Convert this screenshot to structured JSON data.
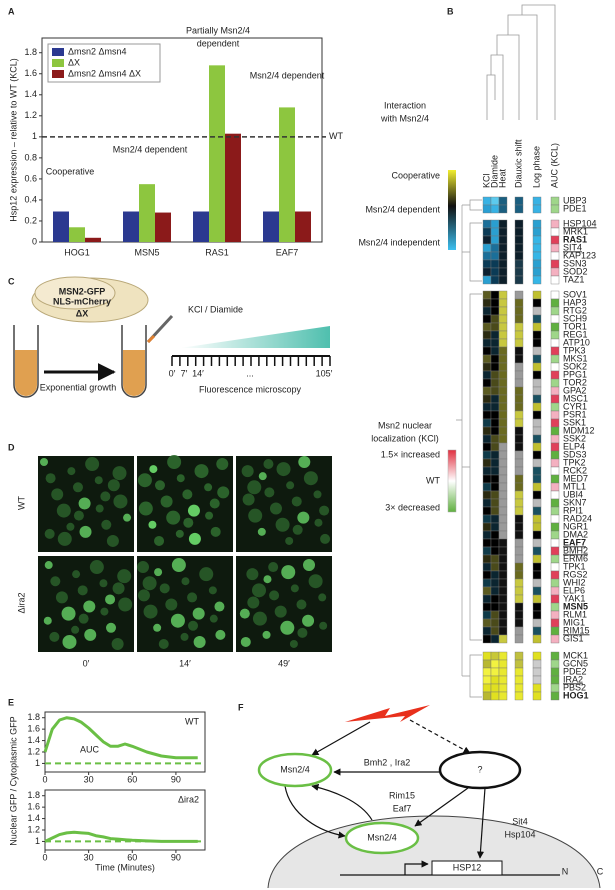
{
  "panel_labels": [
    "A",
    "B",
    "C",
    "D",
    "E",
    "F"
  ],
  "chart_data": [
    {
      "type": "bar",
      "ylabel": "Hsp12 expression – relative to WT (KCL)",
      "categories": [
        "HOG1",
        "MSN5",
        "RAS1",
        "EAF7"
      ],
      "series": [
        {
          "name": "Δmsn2 Δmsn4",
          "color": "#2b3990",
          "values": [
            0.29,
            0.29,
            0.29,
            0.29
          ]
        },
        {
          "name": "ΔX",
          "color": "#8dc63f",
          "values": [
            0.14,
            0.55,
            1.68,
            1.28
          ]
        },
        {
          "name": "Δmsn2 Δmsn4 ΔX",
          "color": "#8b1a1a",
          "values": [
            0.04,
            0.28,
            1.03,
            0.29
          ]
        }
      ],
      "ylim": [
        0,
        1.94
      ],
      "yticks": [
        0,
        0.2,
        0.4,
        0.6,
        0.8,
        1,
        1.2,
        1.4,
        1.6,
        1.8
      ],
      "reference_line": {
        "value": 1,
        "label": "WT"
      },
      "annotations": [
        "Cooperative",
        "Msn2/4 dependent",
        "Partially Msn2/4",
        "dependent",
        "Msn2/4 dependent"
      ],
      "legend": "upper left"
    },
    {
      "type": "line",
      "ylabel": "Nuclear GFP / Cytoplasmic GFP",
      "annotation": "WT",
      "area_label": "AUC",
      "x": [
        0,
        5,
        10,
        15,
        20,
        25,
        30,
        35,
        40,
        45,
        50,
        55,
        60,
        70,
        80,
        90,
        100,
        105
      ],
      "values": [
        1.2,
        1.6,
        1.76,
        1.8,
        1.78,
        1.72,
        1.62,
        1.5,
        1.38,
        1.3,
        1.3,
        1.34,
        1.3,
        1.2,
        1.13,
        1.1,
        1.1,
        1.1
      ],
      "color": "#6abf45",
      "reference_line": 1,
      "xlim": [
        0,
        110
      ],
      "ylim": [
        0.85,
        1.9
      ],
      "xticks": [
        0,
        30,
        60,
        90
      ],
      "yticks": [
        1,
        1.2,
        1.4,
        1.6,
        1.8
      ]
    },
    {
      "type": "line",
      "xlabel": "Time (Minutes)",
      "annotation": "Δira2",
      "x": [
        0,
        5,
        10,
        15,
        20,
        25,
        30,
        35,
        40,
        45,
        50,
        55,
        60,
        70,
        80,
        90,
        100,
        105
      ],
      "values": [
        1.0,
        1.06,
        1.12,
        1.15,
        1.16,
        1.15,
        1.14,
        1.1,
        1.08,
        1.05,
        1.04,
        1.03,
        1.02,
        1.01,
        1.0,
        1.0,
        1.0,
        1.0
      ],
      "color": "#6abf45",
      "reference_line": 1,
      "xlim": [
        0,
        110
      ],
      "ylim": [
        0.85,
        1.9
      ],
      "xticks": [
        0,
        30,
        60,
        90
      ],
      "yticks": [
        1,
        1.2,
        1.4,
        1.6,
        1.8
      ]
    }
  ],
  "heatmap": {
    "columns": [
      "KCl",
      "Diamide",
      "Heat",
      "Diauxic shift",
      "Log phase",
      "AUC (KCL)"
    ],
    "groups": [
      [
        {
          "name": "UBP3"
        },
        {
          "name": "PDE1"
        }
      ],
      [
        {
          "name": "HSP104",
          "underline": true
        },
        {
          "name": "MRK1"
        },
        {
          "name": "RAS1",
          "bold": true
        },
        {
          "name": "SIT4",
          "underline": true
        },
        {
          "name": "KAP123"
        },
        {
          "name": "SSN3"
        },
        {
          "name": "SOD2"
        },
        {
          "name": "TAZ1"
        }
      ],
      [
        {
          "name": "SOV1"
        },
        {
          "name": "HAP3"
        },
        {
          "name": "RTG2"
        },
        {
          "name": "SCH9"
        },
        {
          "name": "TOR1"
        },
        {
          "name": "REG1"
        },
        {
          "name": "ATP10"
        },
        {
          "name": "TPK3"
        },
        {
          "name": "MKS1"
        },
        {
          "name": "SOK2"
        },
        {
          "name": "PPG1"
        },
        {
          "name": "TOR2"
        },
        {
          "name": "GPA2"
        },
        {
          "name": "MSC1"
        },
        {
          "name": "CYR1"
        },
        {
          "name": "PSR1"
        },
        {
          "name": "SSK1"
        },
        {
          "name": "MDM12"
        },
        {
          "name": "SSK2"
        },
        {
          "name": "ELP4"
        },
        {
          "name": "SDS3"
        },
        {
          "name": "TPK2"
        },
        {
          "name": "RCK2"
        },
        {
          "name": "MED7"
        },
        {
          "name": "MTL1"
        },
        {
          "name": "UBI4"
        },
        {
          "name": "SKN7"
        },
        {
          "name": "RPI1"
        },
        {
          "name": "RAD24"
        },
        {
          "name": "NGR1"
        },
        {
          "name": "DMA2"
        },
        {
          "name": "EAF7",
          "bold": true,
          "underline": true
        },
        {
          "name": "BMH2",
          "underline": true
        },
        {
          "name": "ERM6"
        },
        {
          "name": "TPK1"
        },
        {
          "name": "RGS2"
        },
        {
          "name": "WHI2"
        },
        {
          "name": "ELP6"
        },
        {
          "name": "YAK1"
        },
        {
          "name": "MSN5",
          "bold": true
        },
        {
          "name": "RLM1"
        },
        {
          "name": "MIG1"
        },
        {
          "name": "RIM15",
          "underline": true
        },
        {
          "name": "GIS1"
        }
      ],
      [
        {
          "name": "MCK1"
        },
        {
          "name": "GCN5"
        },
        {
          "name": "PDE2"
        },
        {
          "name": "IRA2",
          "underline": true
        },
        {
          "name": "PBS2"
        },
        {
          "name": "HOG1",
          "bold": true
        }
      ]
    ],
    "interaction_legend": {
      "title": [
        "Interaction",
        "with Msn2/4"
      ],
      "labels": [
        "Cooperative",
        "Msn2/4 dependent",
        "Msn2/4 independent"
      ]
    },
    "localization_legend": {
      "title": [
        "Msn2 nuclear",
        "localization (KCl)"
      ],
      "labels": [
        "1.5× increased",
        "WT",
        "3× decreased"
      ]
    }
  },
  "schematic": {
    "cell_labels": [
      "MSN2-GFP",
      "NLS-mCherry",
      "ΔX"
    ],
    "treatment": "KCl / Diamide",
    "growth": "Exponential growth",
    "timeline": [
      "0′",
      "7′",
      "14′",
      "...",
      "105′"
    ],
    "method": "Fluorescence microscopy"
  },
  "microscopy": {
    "rows": [
      "WT",
      "Δira2"
    ],
    "times": [
      "0′",
      "14′",
      "49′"
    ]
  },
  "diagram": {
    "nodes": [
      "Msn2/4",
      "?",
      "Msn2/4",
      "HSP12"
    ],
    "edge_labels": [
      "Bmh2 , Ira2",
      "Rim15",
      "Eaf7",
      "Sit4",
      "Hsp104"
    ],
    "compartments": [
      "N",
      "C"
    ]
  }
}
